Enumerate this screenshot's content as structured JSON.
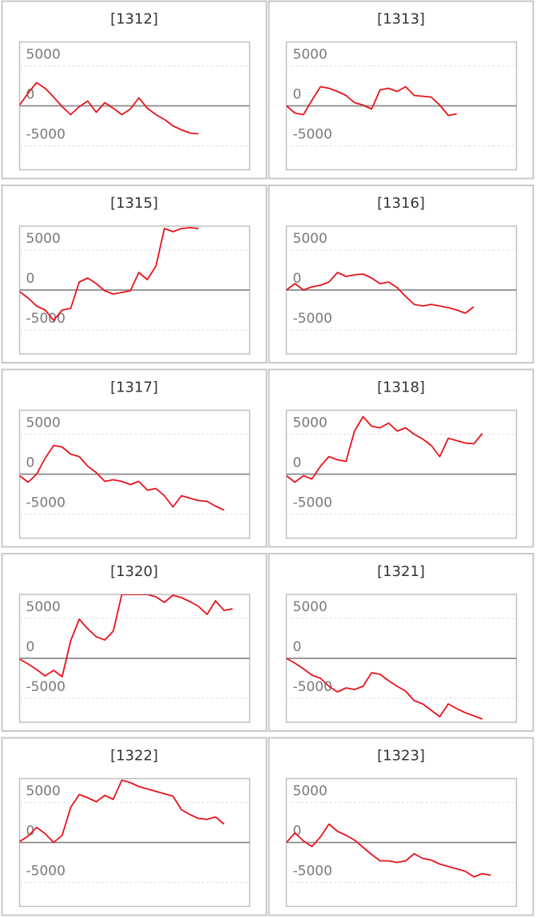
{
  "chart_data": [
    {
      "type": "line",
      "title": "[1312]",
      "color": "#e8141c",
      "xlim": [
        0,
        27
      ],
      "ylim": [
        -8000,
        8000
      ],
      "yticks": [
        -5000,
        0,
        5000
      ],
      "values": [
        100,
        1600,
        2900,
        2200,
        1100,
        -100,
        -1100,
        -100,
        600,
        -800,
        400,
        -300,
        -1100,
        -400,
        1000,
        -300,
        -1100,
        -1700,
        -2500,
        -3000,
        -3400,
        -3500
      ]
    },
    {
      "type": "line",
      "title": "[1313]",
      "color": "#e8141c",
      "xlim": [
        0,
        27
      ],
      "ylim": [
        -8000,
        8000
      ],
      "yticks": [
        -5000,
        0,
        5000
      ],
      "values": [
        0,
        -900,
        -1100,
        700,
        2400,
        2200,
        1800,
        1300,
        400,
        100,
        -400,
        2000,
        2200,
        1800,
        2400,
        1300,
        1200,
        1100,
        100,
        -1200,
        -1000
      ]
    },
    {
      "type": "line",
      "title": "[1315]",
      "color": "#e8141c",
      "xlim": [
        0,
        27
      ],
      "ylim": [
        -8000,
        8000
      ],
      "yticks": [
        -5000,
        0,
        5000
      ],
      "values": [
        -200,
        -1000,
        -2000,
        -2500,
        -3800,
        -2500,
        -2300,
        1000,
        1500,
        800,
        -100,
        -500,
        -300,
        -100,
        2200,
        1300,
        3000,
        7700,
        7300,
        7700,
        7800,
        7700
      ]
    },
    {
      "type": "line",
      "title": "[1316]",
      "color": "#e8141c",
      "xlim": [
        0,
        27
      ],
      "ylim": [
        -8000,
        8000
      ],
      "yticks": [
        -5000,
        0,
        5000
      ],
      "values": [
        0,
        800,
        0,
        400,
        600,
        1000,
        2200,
        1700,
        1900,
        2000,
        1500,
        800,
        1000,
        300,
        -800,
        -1800,
        -2000,
        -1800,
        -2000,
        -2200,
        -2500,
        -2900,
        -2100
      ]
    },
    {
      "type": "line",
      "title": "[1317]",
      "color": "#e8141c",
      "xlim": [
        0,
        27
      ],
      "ylim": [
        -8000,
        8000
      ],
      "yticks": [
        -5000,
        0,
        5000
      ],
      "values": [
        -200,
        -1000,
        0,
        2000,
        3600,
        3400,
        2500,
        2200,
        1000,
        200,
        -900,
        -700,
        -900,
        -1300,
        -900,
        -2000,
        -1800,
        -2700,
        -4100,
        -2700,
        -3000,
        -3300,
        -3400,
        -4000,
        -4500
      ]
    },
    {
      "type": "line",
      "title": "[1318]",
      "color": "#e8141c",
      "xlim": [
        0,
        27
      ],
      "ylim": [
        -8000,
        8000
      ],
      "yticks": [
        -5000,
        0,
        5000
      ],
      "values": [
        -200,
        -1000,
        -200,
        -600,
        1000,
        2200,
        1800,
        1600,
        5400,
        7200,
        6000,
        5800,
        6400,
        5400,
        5800,
        5000,
        4400,
        3600,
        2200,
        4500,
        4200,
        3900,
        3800,
        5100
      ]
    },
    {
      "type": "line",
      "title": "[1320]",
      "color": "#e8141c",
      "xlim": [
        0,
        27
      ],
      "ylim": [
        -8000,
        8000
      ],
      "yticks": [
        -5000,
        0,
        5000
      ],
      "values": [
        -100,
        -700,
        -1400,
        -2200,
        -1500,
        -2300,
        2200,
        4900,
        3700,
        2700,
        2300,
        3400,
        8000,
        8000,
        8000,
        8000,
        7700,
        7000,
        7900,
        7600,
        7100,
        6500,
        5500,
        7200,
        6000,
        6200
      ]
    },
    {
      "type": "line",
      "title": "[1321]",
      "color": "#e8141c",
      "xlim": [
        0,
        27
      ],
      "ylim": [
        -8000,
        8000
      ],
      "yticks": [
        -5000,
        0,
        5000
      ],
      "values": [
        0,
        -600,
        -1300,
        -2100,
        -2500,
        -3500,
        -4200,
        -3700,
        -3900,
        -3500,
        -1800,
        -2000,
        -2800,
        -3500,
        -4100,
        -5300,
        -5700,
        -6500,
        -7300,
        -5700,
        -6300,
        -6800,
        -7200,
        -7600
      ]
    },
    {
      "type": "line",
      "title": "[1322]",
      "color": "#e8141c",
      "xlim": [
        0,
        27
      ],
      "ylim": [
        -8000,
        8000
      ],
      "yticks": [
        -5000,
        0,
        5000
      ],
      "values": [
        100,
        800,
        1900,
        1100,
        0,
        900,
        4400,
        6000,
        5600,
        5100,
        5900,
        5400,
        7800,
        7500,
        7000,
        6700,
        6400,
        6100,
        5800,
        4100,
        3500,
        3000,
        2900,
        3200,
        2300
      ]
    },
    {
      "type": "line",
      "title": "[1323]",
      "color": "#e8141c",
      "xlim": [
        0,
        27
      ],
      "ylim": [
        -8000,
        8000
      ],
      "yticks": [
        -5000,
        0,
        5000
      ],
      "values": [
        0,
        1200,
        200,
        -500,
        700,
        2300,
        1400,
        900,
        300,
        -600,
        -1500,
        -2300,
        -2300,
        -2500,
        -2300,
        -1400,
        -2000,
        -2200,
        -2700,
        -3000,
        -3300,
        -3600,
        -4300,
        -3900,
        -4100
      ]
    }
  ]
}
